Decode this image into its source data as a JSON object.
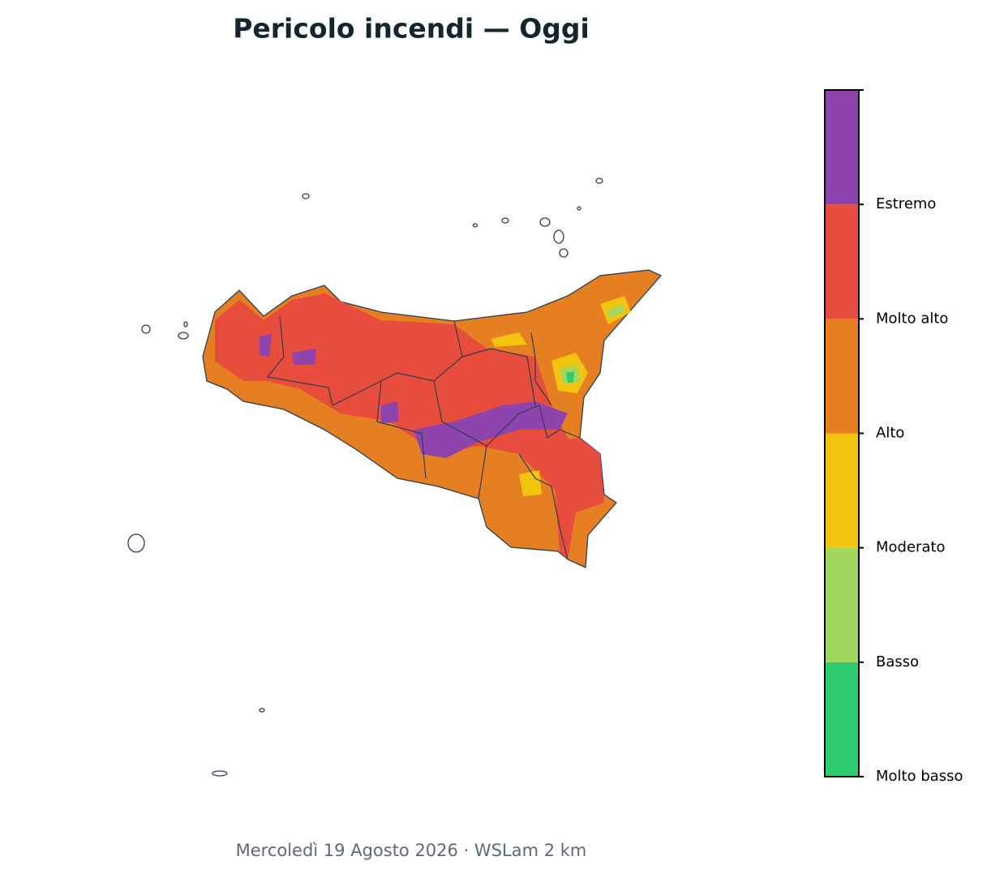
{
  "header": {
    "title": "Pericolo incendi — Oggi"
  },
  "legend": {
    "labels": [
      "Molto basso",
      "Basso",
      "Moderato",
      "Alto",
      "Molto alto",
      "Estremo"
    ],
    "colors": [
      "#2ecc71",
      "#a3d65c",
      "#f1c40f",
      "#e67e22",
      "#e74c3c",
      "#8e44ad"
    ]
  },
  "footer": {
    "subtitle": "Mercoledì 19 Agosto 2026 · WSLam 2 km"
  }
}
